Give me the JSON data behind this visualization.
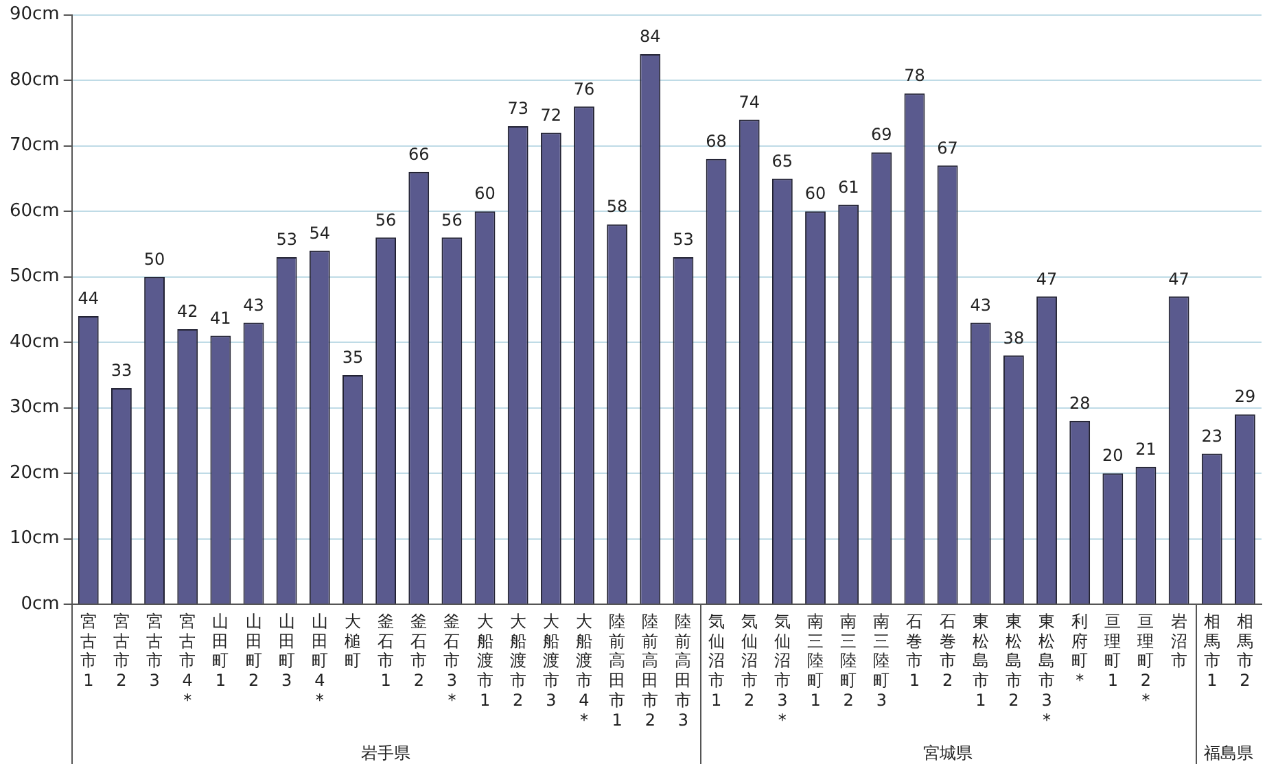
{
  "chart_data": {
    "type": "bar",
    "categories": [
      "宮古市1",
      "宮古市2",
      "宮古市3",
      "宮古市4*",
      "山田町1",
      "山田町2",
      "山田町3",
      "山田町4*",
      "大槌町",
      "釜石市1",
      "釜石市2",
      "釜石市3*",
      "大船渡市1",
      "大船渡市2",
      "大船渡市3",
      "大船渡市4*",
      "陸前高田市1",
      "陸前高田市2",
      "陸前高田市3",
      "気仙沼市1",
      "気仙沼市2",
      "気仙沼市3*",
      "南三陸町1",
      "南三陸町2",
      "南三陸町3",
      "石巻市1",
      "石巻市2",
      "東松島市1",
      "東松島市2",
      "東松島市3*",
      "利府町*",
      "亘理町1",
      "亘理町2*",
      "岩沼市",
      "相馬市1",
      "相馬市2"
    ],
    "values": [
      44,
      33,
      50,
      42,
      41,
      43,
      53,
      54,
      35,
      56,
      66,
      56,
      60,
      73,
      72,
      76,
      58,
      84,
      53,
      68,
      74,
      65,
      60,
      61,
      69,
      78,
      67,
      43,
      38,
      47,
      28,
      20,
      21,
      47,
      23,
      29
    ],
    "color": "#5a5a8e",
    "data_labels": true,
    "ylim": [
      0,
      90
    ],
    "yticks": [
      {
        "value": 0,
        "label": "0cm"
      },
      {
        "value": 10,
        "label": "10cm"
      },
      {
        "value": 20,
        "label": "20cm"
      },
      {
        "value": 30,
        "label": "30cm"
      },
      {
        "value": 40,
        "label": "40cm"
      },
      {
        "value": 50,
        "label": "50cm"
      },
      {
        "value": 60,
        "label": "60cm"
      },
      {
        "value": 70,
        "label": "70cm"
      },
      {
        "value": 80,
        "label": "80cm"
      },
      {
        "value": 90,
        "label": "90cm"
      }
    ],
    "grid": "y",
    "annotations": [
      "岩手県",
      "宮城県",
      "福島県"
    ]
  }
}
